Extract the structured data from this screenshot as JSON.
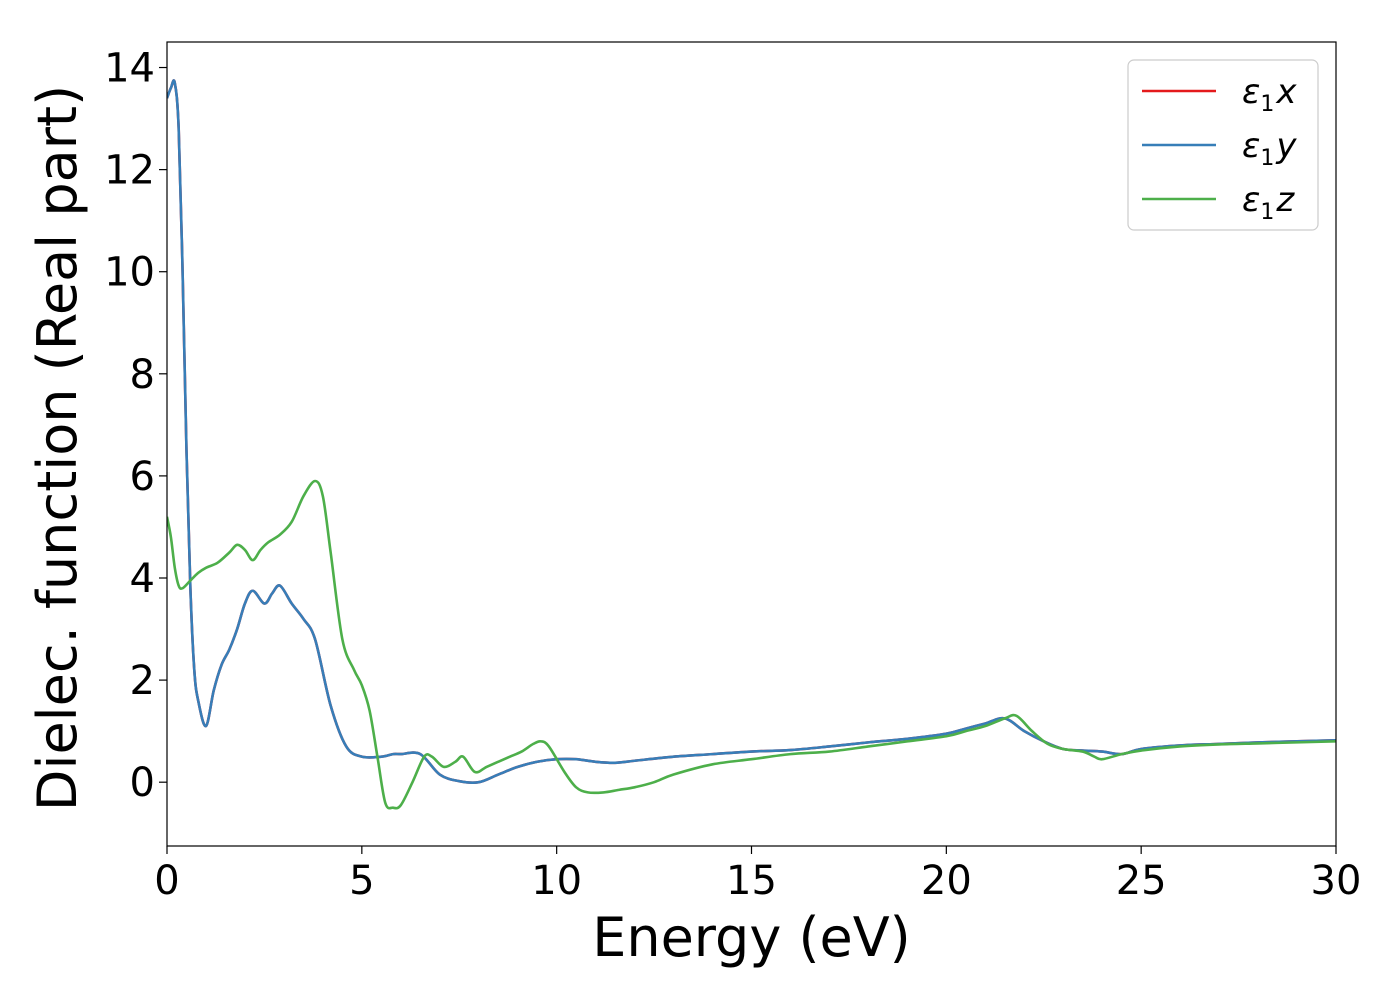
{
  "chart_data": {
    "type": "line",
    "xlabel": "Energy (eV)",
    "ylabel": "Dielec. function (Real part)",
    "xlim": [
      0,
      30
    ],
    "ylim": [
      -1.25,
      14.5
    ],
    "xticks": [
      0,
      5,
      10,
      15,
      20,
      25,
      30
    ],
    "yticks": [
      0,
      2,
      4,
      6,
      8,
      10,
      12,
      14
    ],
    "grid": false,
    "legend_position": "top-right",
    "series": [
      {
        "name": "ε1x",
        "label_main": "ε",
        "label_sub": "1",
        "label_axis": "x",
        "color": "#e41a1c",
        "x": [
          0,
          0.1,
          0.2,
          0.3,
          0.4,
          0.5,
          0.6,
          0.7,
          0.8,
          1.0,
          1.2,
          1.4,
          1.6,
          1.8,
          2.0,
          2.2,
          2.5,
          2.7,
          2.9,
          3.2,
          3.5,
          3.8,
          4.2,
          4.6,
          5.0,
          5.5,
          5.8,
          6.0,
          6.5,
          7.0,
          7.5,
          8.0,
          8.5,
          9.0,
          9.5,
          10.0,
          10.5,
          11.0,
          11.5,
          12.0,
          13.0,
          14.0,
          15.0,
          16.0,
          17.0,
          18.0,
          19.0,
          20.0,
          20.5,
          21.0,
          21.5,
          22.0,
          22.5,
          23.0,
          23.5,
          24.0,
          24.5,
          25.0,
          26.0,
          27.0,
          28.0,
          29.0,
          30.0
        ],
        "y": [
          13.4,
          13.6,
          13.7,
          12.8,
          10.0,
          6.5,
          3.8,
          2.2,
          1.6,
          1.1,
          1.8,
          2.3,
          2.6,
          3.0,
          3.5,
          3.75,
          3.5,
          3.7,
          3.85,
          3.5,
          3.2,
          2.8,
          1.5,
          0.7,
          0.5,
          0.5,
          0.55,
          0.55,
          0.55,
          0.15,
          0.02,
          0.0,
          0.15,
          0.3,
          0.4,
          0.45,
          0.45,
          0.4,
          0.38,
          0.42,
          0.5,
          0.55,
          0.6,
          0.63,
          0.7,
          0.78,
          0.85,
          0.95,
          1.05,
          1.15,
          1.25,
          1.0,
          0.8,
          0.65,
          0.62,
          0.6,
          0.55,
          0.65,
          0.72,
          0.75,
          0.78,
          0.8,
          0.82
        ]
      },
      {
        "name": "ε1y",
        "label_main": "ε",
        "label_sub": "1",
        "label_axis": "y",
        "color": "#377eb8",
        "x": [
          0,
          0.1,
          0.2,
          0.3,
          0.4,
          0.5,
          0.6,
          0.7,
          0.8,
          1.0,
          1.2,
          1.4,
          1.6,
          1.8,
          2.0,
          2.2,
          2.5,
          2.7,
          2.9,
          3.2,
          3.5,
          3.8,
          4.2,
          4.6,
          5.0,
          5.5,
          5.8,
          6.0,
          6.5,
          7.0,
          7.5,
          8.0,
          8.5,
          9.0,
          9.5,
          10.0,
          10.5,
          11.0,
          11.5,
          12.0,
          13.0,
          14.0,
          15.0,
          16.0,
          17.0,
          18.0,
          19.0,
          20.0,
          20.5,
          21.0,
          21.5,
          22.0,
          22.5,
          23.0,
          23.5,
          24.0,
          24.5,
          25.0,
          26.0,
          27.0,
          28.0,
          29.0,
          30.0
        ],
        "y": [
          13.4,
          13.6,
          13.7,
          12.8,
          10.0,
          6.5,
          3.8,
          2.2,
          1.6,
          1.1,
          1.8,
          2.3,
          2.6,
          3.0,
          3.5,
          3.75,
          3.5,
          3.7,
          3.85,
          3.5,
          3.2,
          2.8,
          1.5,
          0.7,
          0.5,
          0.5,
          0.55,
          0.55,
          0.55,
          0.15,
          0.02,
          0.0,
          0.15,
          0.3,
          0.4,
          0.45,
          0.45,
          0.4,
          0.38,
          0.42,
          0.5,
          0.55,
          0.6,
          0.63,
          0.7,
          0.78,
          0.85,
          0.95,
          1.05,
          1.15,
          1.25,
          1.0,
          0.8,
          0.65,
          0.62,
          0.6,
          0.55,
          0.65,
          0.72,
          0.75,
          0.78,
          0.8,
          0.82
        ]
      },
      {
        "name": "ε1z",
        "label_main": "ε",
        "label_sub": "1",
        "label_axis": "z",
        "color": "#4daf4a",
        "x": [
          0,
          0.1,
          0.2,
          0.3,
          0.4,
          0.6,
          0.8,
          1.0,
          1.3,
          1.6,
          1.8,
          2.0,
          2.2,
          2.4,
          2.6,
          2.9,
          3.2,
          3.5,
          3.8,
          4.0,
          4.2,
          4.5,
          4.8,
          5.0,
          5.2,
          5.4,
          5.6,
          5.8,
          6.0,
          6.3,
          6.6,
          6.8,
          7.1,
          7.4,
          7.6,
          7.9,
          8.2,
          8.5,
          8.8,
          9.1,
          9.4,
          9.6,
          9.8,
          10.2,
          10.5,
          10.8,
          11.2,
          11.6,
          12.0,
          12.5,
          13.0,
          14.0,
          15.0,
          16.0,
          17.0,
          18.0,
          19.0,
          20.0,
          20.5,
          21.0,
          21.5,
          21.8,
          22.2,
          22.6,
          23.0,
          23.5,
          23.8,
          24.0,
          24.5,
          25.0,
          26.0,
          27.0,
          28.0,
          29.0,
          30.0
        ],
        "y": [
          5.2,
          4.8,
          4.2,
          3.85,
          3.8,
          3.95,
          4.1,
          4.2,
          4.3,
          4.5,
          4.65,
          4.55,
          4.35,
          4.55,
          4.7,
          4.85,
          5.1,
          5.6,
          5.9,
          5.6,
          4.5,
          2.8,
          2.2,
          1.9,
          1.4,
          0.5,
          -0.4,
          -0.5,
          -0.45,
          0.0,
          0.5,
          0.5,
          0.3,
          0.4,
          0.5,
          0.2,
          0.3,
          0.4,
          0.5,
          0.6,
          0.75,
          0.8,
          0.7,
          0.2,
          -0.1,
          -0.2,
          -0.2,
          -0.15,
          -0.1,
          0.0,
          0.15,
          0.35,
          0.45,
          0.55,
          0.6,
          0.7,
          0.8,
          0.9,
          1.0,
          1.1,
          1.25,
          1.3,
          1.0,
          0.75,
          0.65,
          0.6,
          0.5,
          0.45,
          0.55,
          0.62,
          0.7,
          0.74,
          0.76,
          0.78,
          0.8
        ]
      }
    ]
  }
}
